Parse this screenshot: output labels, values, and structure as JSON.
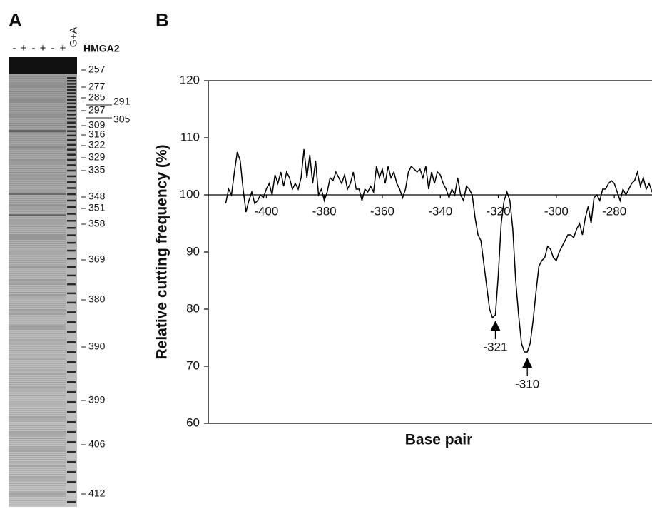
{
  "panel_a": {
    "label": "A",
    "lanes": [
      "-",
      "+",
      "-",
      "+",
      "-",
      "+",
      "G+A"
    ],
    "protein": "HMGA2",
    "markers": [
      257,
      277,
      285,
      291,
      297,
      305,
      309,
      316,
      322,
      329,
      335,
      348,
      351,
      358,
      369,
      380,
      390,
      399,
      406,
      412
    ]
  },
  "chart_data": {
    "type": "line",
    "panel_label": "B",
    "xlabel": "Base pair",
    "ylabel": "Relative cutting frequency (%)",
    "x": [
      -414,
      -413,
      -412,
      -411,
      -410,
      -409,
      -408,
      -407,
      -406,
      -405,
      -404,
      -403,
      -402,
      -401,
      -400,
      -399,
      -398,
      -397,
      -396,
      -395,
      -394,
      -393,
      -392,
      -391,
      -390,
      -389,
      -388,
      -387,
      -386,
      -385,
      -384,
      -383,
      -382,
      -381,
      -380,
      -379,
      -378,
      -377,
      -376,
      -375,
      -374,
      -373,
      -372,
      -371,
      -370,
      -369,
      -368,
      -367,
      -366,
      -365,
      -364,
      -363,
      -362,
      -361,
      -360,
      -359,
      -358,
      -357,
      -356,
      -355,
      -354,
      -353,
      -352,
      -351,
      -350,
      -349,
      -348,
      -347,
      -346,
      -345,
      -344,
      -343,
      -342,
      -341,
      -340,
      -339,
      -338,
      -337,
      -336,
      -335,
      -334,
      -333,
      -332,
      -331,
      -330,
      -329,
      -328,
      -327,
      -326,
      -325,
      -324,
      -323,
      -322,
      -321,
      -320,
      -319,
      -318,
      -317,
      -316,
      -315,
      -314,
      -313,
      -312,
      -311,
      -310,
      -309,
      -308,
      -307,
      -306,
      -305,
      -304,
      -303,
      -302,
      -301,
      -300,
      -299,
      -298,
      -297,
      -296,
      -295,
      -294,
      -293,
      -292,
      -291,
      -290,
      -289,
      -288,
      -287,
      -286,
      -285,
      -284,
      -283,
      -282,
      -281,
      -280,
      -279,
      -278,
      -277,
      -276,
      -275,
      -274,
      -273,
      -272,
      -271,
      -270,
      -269,
      -268,
      -267
    ],
    "values": [
      98.5,
      101,
      100,
      104,
      107.5,
      106,
      101,
      97,
      99,
      100.5,
      98.5,
      99,
      100,
      99.5,
      101,
      102,
      100,
      103.5,
      102,
      104,
      101.5,
      104,
      103,
      101,
      102,
      101,
      103,
      108,
      103,
      107,
      102,
      106,
      100,
      101,
      99,
      100.5,
      103,
      102.5,
      104,
      103,
      102,
      103.5,
      101,
      102,
      104,
      101,
      101,
      99,
      101,
      100.5,
      101.5,
      100.5,
      105,
      103,
      104.5,
      102,
      105,
      103,
      104,
      102,
      101,
      99.5,
      101,
      104,
      105,
      104.5,
      104,
      104.5,
      103,
      105,
      101,
      104,
      102,
      104,
      103.5,
      102,
      101,
      99.5,
      101,
      100,
      103,
      100,
      99,
      101.5,
      101,
      100,
      96,
      93,
      92,
      88,
      84,
      80,
      78.5,
      79,
      86,
      95,
      99,
      100.5,
      99,
      94,
      85,
      79,
      74,
      72.5,
      72.5,
      74,
      78,
      83,
      87.5,
      88.5,
      89,
      91,
      90.5,
      89,
      88.5,
      90,
      91,
      92,
      93,
      93,
      92.5,
      94,
      95,
      93,
      96,
      98,
      95,
      99.5,
      100,
      99,
      101,
      101,
      102,
      102.5,
      102,
      100.5,
      99,
      101,
      100,
      101,
      102,
      102.5,
      104,
      101.5,
      103,
      101,
      102,
      100.5
    ],
    "color": "#000000",
    "xlim": [
      -420,
      -267
    ],
    "ylim": [
      60,
      120
    ],
    "xticks": [
      -400,
      -380,
      -360,
      -340,
      -320,
      -300,
      -280
    ],
    "yticks": [
      60,
      70,
      80,
      90,
      100,
      110,
      120
    ],
    "reference_line": 100,
    "annotations": [
      {
        "x": -321,
        "label": "-321"
      },
      {
        "x": -310,
        "label": "-310"
      }
    ]
  }
}
